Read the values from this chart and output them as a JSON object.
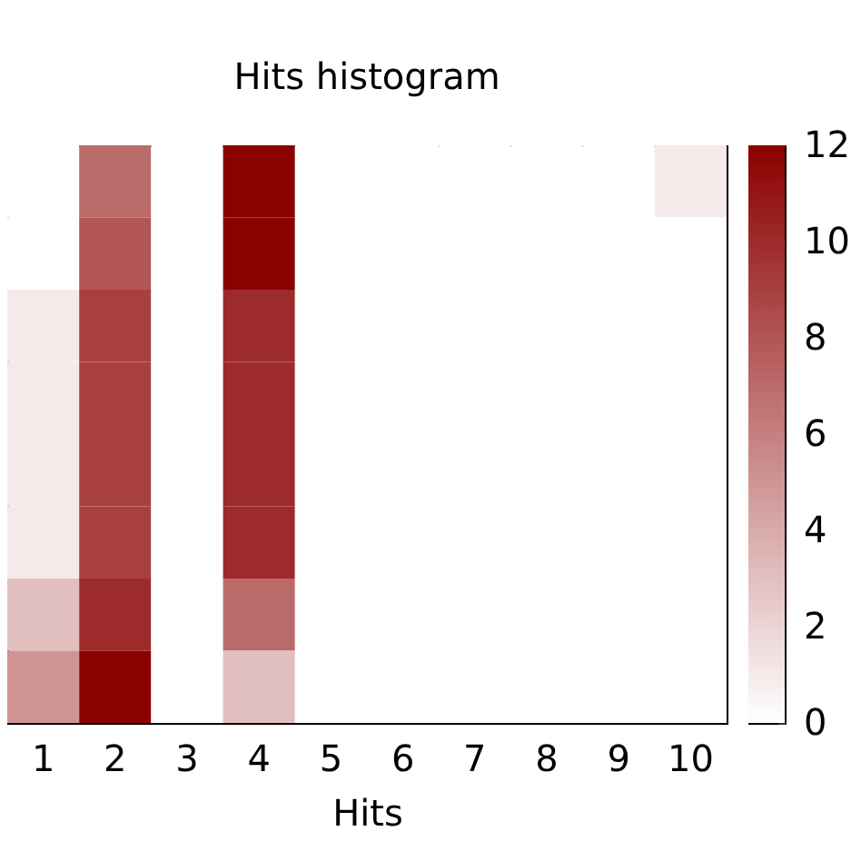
{
  "chart_data": {
    "type": "heatmap",
    "title": "Hits histogram",
    "xlabel": "Hits",
    "categories": [
      "1",
      "2",
      "3",
      "4",
      "5",
      "6",
      "7",
      "8",
      "9",
      "10"
    ],
    "y_categories": [
      null,
      null,
      null,
      null,
      null,
      null,
      null,
      null
    ],
    "cells": [
      [
        0,
        7,
        0,
        12,
        0,
        0,
        0,
        0,
        0,
        1
      ],
      [
        0,
        8,
        0,
        12,
        0,
        0,
        0,
        0,
        0,
        0
      ],
      [
        1,
        9,
        0,
        10,
        0,
        0,
        0,
        0,
        0,
        0
      ],
      [
        1,
        9,
        0,
        10,
        0,
        0,
        0,
        0,
        0,
        0
      ],
      [
        1,
        9,
        0,
        10,
        0,
        0,
        0,
        0,
        0,
        0
      ],
      [
        1,
        9,
        0,
        10,
        0,
        0,
        0,
        0,
        0,
        0
      ],
      [
        3,
        10,
        0,
        7,
        0,
        0,
        0,
        0,
        0,
        0
      ],
      [
        5,
        12,
        0,
        3,
        0,
        0,
        0,
        0,
        0,
        0
      ]
    ],
    "clim": [
      0,
      12
    ],
    "cticks": [
      0,
      2,
      4,
      6,
      8,
      10,
      12
    ],
    "tick_labels": "x"
  }
}
